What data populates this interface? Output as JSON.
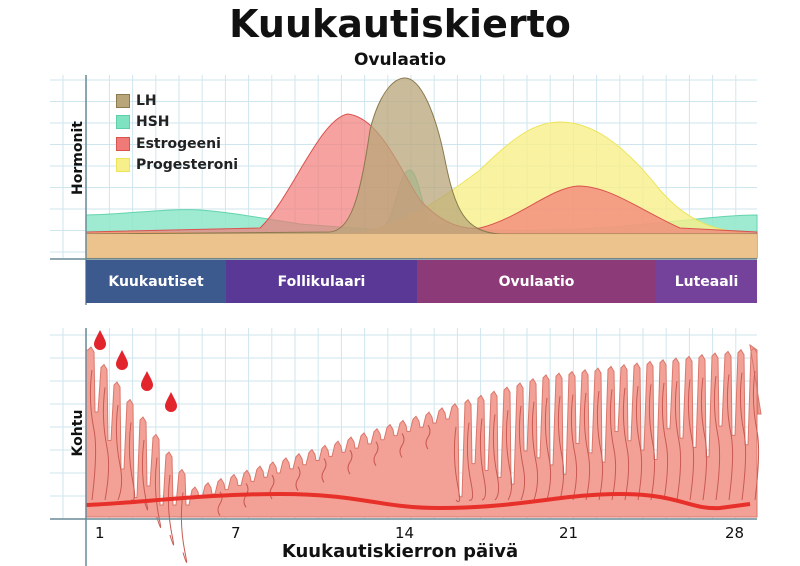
{
  "title": "Kuukautiskierto",
  "top_label": "Ovulaatio",
  "hormones_axis_label": "Hormonit",
  "uterus_axis_label": "Kohtu",
  "x_axis_label": "Kuukautiskierron päivä",
  "legend": [
    {
      "label": "LH",
      "color": "#b9a57a"
    },
    {
      "label": "HSH",
      "color": "#7fe3c2"
    },
    {
      "label": "Estrogeeni",
      "color": "#f07a78"
    },
    {
      "label": "Progesteroni",
      "color": "#f7f08a"
    }
  ],
  "phases": [
    {
      "label": "Kuukautiset",
      "color": "#3d5a8e"
    },
    {
      "label": "Follikulaari",
      "color": "#593995"
    },
    {
      "label": "Ovulaatio",
      "color": "#8c3b78"
    },
    {
      "label": "Luteaali",
      "color": "#74429a"
    }
  ],
  "day_ticks": [
    "1",
    "7",
    "14",
    "21",
    "28"
  ]
}
